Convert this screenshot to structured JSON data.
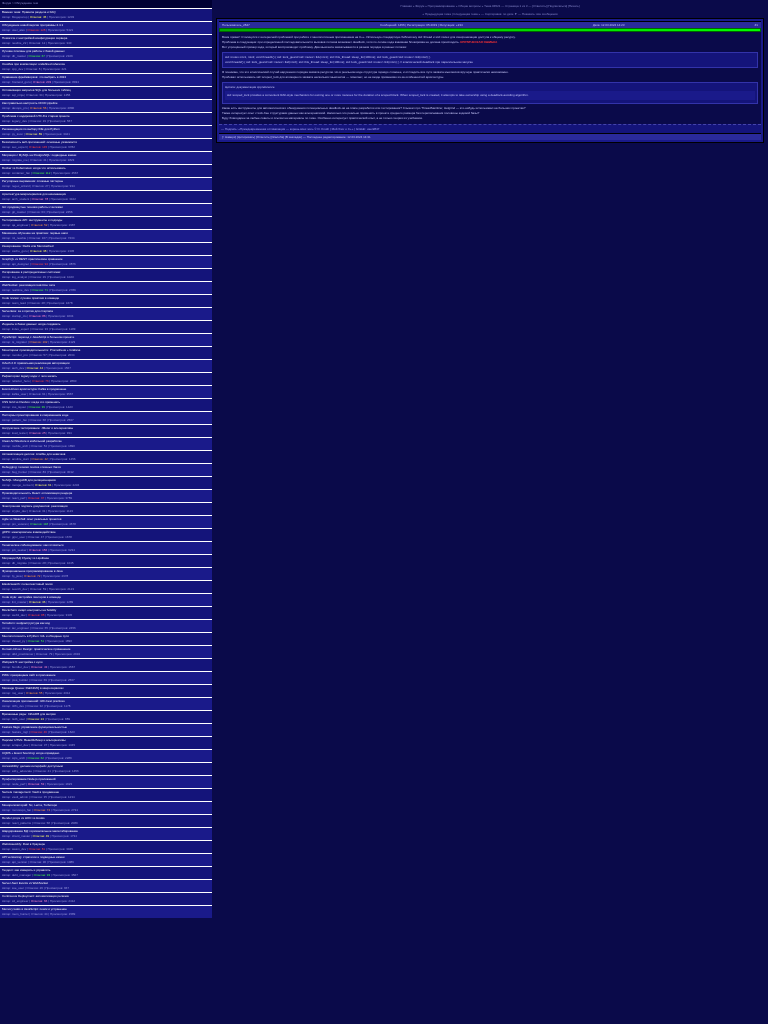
{
  "sidebar": {
    "header": "Форум > Обсуждение тем",
    "threads": [
      {
        "title": "Важная тема: Правила раздела и FAQ",
        "meta": "Автор: Модератор | Ответов: 45 | Просмотров: 1203",
        "accent": "hl-yellow"
      },
      {
        "title": "Обсуждение новой версии программы 2.4.1",
        "meta": "Автор: user_alex | Ответов: 128 | Просмотров: 5421",
        "accent": "hl-red"
      },
      {
        "title": "Помогите с настройкой конфигурации сервера",
        "meta": "Автор: newbie_22 | Ответов: 12 | Просмотров: 340",
        "accent": ""
      },
      {
        "title": "Лучшие плагины для работы с базой данных",
        "meta": "Автор: db_master | Ответов: 67 | Просмотров: 2109",
        "accent": "hl-green"
      },
      {
        "title": "Ошибка при компиляции: undefined reference",
        "meta": "Автор: cpp_dev | Ответов: 8 | Просмотров: 221",
        "accent": ""
      },
      {
        "title": "Сравнение фреймворков: что выбрать в 2024",
        "meta": "Автор: frontend_guru | Ответов: 203 | Просмотров: 8934",
        "accent": "hl-pink"
      },
      {
        "title": "Оптимизация запросов SQL для больших таблиц",
        "meta": "Автор: sql_ninja | Ответов: 34 | Просмотров: 1456",
        "accent": ""
      },
      {
        "title": "Как правильно настроить CI/CD pipeline",
        "meta": "Автор: devops_pro | Ответов: 56 | Просмотров: 2890",
        "accent": "hl-orange"
      },
      {
        "title": "Проблема с кодировкой UTF-8 в старом проекте",
        "meta": "Автор: legacy_dev | Ответов: 19 | Просмотров: 567",
        "accent": ""
      },
      {
        "title": "Рекомендации по выбору IDE для Python",
        "meta": "Автор: py_lover | Ответов: 89 | Просмотров: 3421",
        "accent": "hl-yellow"
      },
      {
        "title": "Безопасность веб-приложений: основные уязвимости",
        "meta": "Автор: sec_expert | Ответов: 145 | Просмотров: 6782",
        "accent": "hl-red"
      },
      {
        "title": "Миграция с MySQL на PostgreSQL: подводные камни",
        "meta": "Автор: migrate_me | Ответов: 41 | Просмотров: 1823",
        "accent": ""
      },
      {
        "title": "Docker vs Kubernetes: когда что использовать",
        "meta": "Автор: container_fan | Ответов: 112 | Просмотров: 4567",
        "accent": "hl-green"
      },
      {
        "title": "Регулярные выражения: сложные паттерны",
        "meta": "Автор: regex_wizard | Ответов: 27 | Просмотров: 934",
        "accent": ""
      },
      {
        "title": "Архитектура микросервисов для начинающих",
        "meta": "Автор: arch_student | Ответов: 78 | Просмотров: 3102",
        "accent": "hl-pink"
      },
      {
        "title": "Git: продвинутые техники работы с ветками",
        "meta": "Автор: git_master | Ответов: 63 | Просмотров: 2456",
        "accent": ""
      },
      {
        "title": "Тестирование API: инструменты и подходы",
        "meta": "Автор: qa_engineer | Ответов: 52 | Просмотров: 1987",
        "accent": "hl-orange"
      },
      {
        "title": "Машинное обучение на практике: первые шаги",
        "meta": "Автор: ml_newbie | Ответов: 167 | Просмотров: 7234",
        "accent": ""
      },
      {
        "title": "Кэширование: Redis или Memcached",
        "meta": "Автор: cache_guru | Ответов: 38 | Просмотров: 1345",
        "accent": "hl-yellow"
      },
      {
        "title": "GraphQL vs REST: практическое сравнение",
        "meta": "Автор: api_designer | Ответов: 94 | Просмотров: 3876",
        "accent": "hl-red"
      },
      {
        "title": "Логирование в распределённых системах",
        "meta": "Автор: log_analyst | Ответов: 29 | Просмотров: 1023",
        "accent": ""
      },
      {
        "title": "WebSocket: реализация real-time чата",
        "meta": "Автор: realtime_dev | Ответов: 71 | Просмотров: 2789",
        "accent": "hl-green"
      },
      {
        "title": "Code review: лучшие практики в команде",
        "meta": "Автор: team_lead | Ответов: 48 | Просмотров: 1678",
        "accent": ""
      },
      {
        "title": "Serverless: за и против для стартапа",
        "meta": "Автор: startup_cto | Ответов: 86 | Просмотров: 3234",
        "accent": "hl-pink"
      },
      {
        "title": "Индексы в базах данных: когда создавать",
        "meta": "Автор: index_expert | Ответов: 33 | Просмотров: 1189",
        "accent": ""
      },
      {
        "title": "TypeScript: переход с JavaScript в большом проекте",
        "meta": "Автор: ts_migrator | Ответов: 102 | Просмотров: 4123",
        "accent": "hl-orange"
      },
      {
        "title": "Мониторинг производительности: Prometheus + Grafana",
        "meta": "Автор: monitor_pro | Ответов: 57 | Просмотров: 2034",
        "accent": ""
      },
      {
        "title": "OAuth 2.0: правильная реализация авторизации",
        "meta": "Автор: auth_dev | Ответов: 44 | Просмотров: 1567",
        "accent": "hl-yellow"
      },
      {
        "title": "Рефакторинг legacy кода: с чего начать",
        "meta": "Автор: refactor_hero | Ответов: 76 | Просмотров: 2890",
        "accent": "hl-red"
      },
      {
        "title": "Event-driven архитектура: Kafka в продакшене",
        "meta": "Автор: kafka_user | Ответов: 91 | Просмотров: 3567",
        "accent": ""
      },
      {
        "title": "CSS Grid vs Flexbox: когда что применять",
        "meta": "Автор: css_layout | Ответов: 39 | Просмотров: 1423",
        "accent": "hl-green"
      },
      {
        "title": "Паттерны проектирования в современном коде",
        "meta": "Автор: pattern_fan | Ответов: 68 | Просмотров: 2567",
        "accent": ""
      },
      {
        "title": "Нагрузочное тестирование: JMeter и альтернативы",
        "meta": "Автор: load_tester | Ответов: 25 | Просмотров: 934",
        "accent": "hl-pink"
      },
      {
        "title": "Clean Architecture в мобильной разработке",
        "meta": "Автор: mobile_arch | Ответов: 54 | Просмотров: 1890",
        "accent": ""
      },
      {
        "title": "Автоматизация деплоя: Ansible для новичков",
        "meta": "Автор: ansible_start | Ответов: 42 | Просмотров: 1456",
        "accent": "hl-orange"
      },
      {
        "title": "Debugging: техники поиска сложных багов",
        "meta": "Автор: bug_hunter | Ответов: 83 | Просмотров: 3012",
        "accent": ""
      },
      {
        "title": "NoSQL: MongoDB для реляционщиков",
        "meta": "Автор: mongo_convert | Ответов: 61 | Просмотров: 2234",
        "accent": "hl-yellow"
      },
      {
        "title": "Производительность React: оптимизация рендера",
        "meta": "Автор: react_perf | Ответов: 97 | Просмотров: 3789",
        "accent": "hl-red"
      },
      {
        "title": "Электронная подпись документов: реализация",
        "meta": "Автор: crypto_dev | Ответов: 31 | Просмотров: 1123",
        "accent": ""
      },
      {
        "title": "Agile vs Waterfall: опыт реальных проектов",
        "meta": "Автор: pm_veteran | Ответов: 118 | Просмотров: 4678",
        "accent": "hl-green"
      },
      {
        "title": "gRPC: межсервисное взаимодействие",
        "meta": "Автор: grpc_user | Ответов: 47 | Просмотров: 1678",
        "accent": ""
      },
      {
        "title": "Техническое собеседование: как готовиться",
        "meta": "Автор: job_seeker | Ответов: 156 | Просмотров: 6234",
        "accent": "hl-pink"
      },
      {
        "title": "Миграции БД: Flyway vs Liquibase",
        "meta": "Автор: db_migrate | Ответов: 28 | Просмотров: 1045",
        "accent": ""
      },
      {
        "title": "Функциональное программирование в Java",
        "meta": "Автор: fp_java | Ответов: 72 | Просмотров: 2678",
        "accent": "hl-orange"
      },
      {
        "title": "Elasticsearch: полнотекстовый поиск",
        "meta": "Автор: search_dev | Ответов: 59 | Просмотров: 2123",
        "accent": ""
      },
      {
        "title": "Code style: настройка линтеров в команде",
        "meta": "Автор: lint_master | Ответов: 36 | Просмотров: 1289",
        "accent": "hl-yellow"
      },
      {
        "title": "Blockchain: смарт-контракты на Solidity",
        "meta": "Автор: web3_dev | Ответов: 88 | Просмотров: 3345",
        "accent": "hl-red"
      },
      {
        "title": "Terraform: инфраструктура как код",
        "meta": "Автор: iac_engineer | Ответов: 65 | Просмотров: 2456",
        "accent": ""
      },
      {
        "title": "Многопоточность в Python: GIL и обходные пути",
        "meta": "Автор: thread_py | Ответов: 51 | Просмотров: 1890",
        "accent": "hl-green"
      },
      {
        "title": "Domain-Driven Design: практическое применение",
        "meta": "Автор: ddd_practitioner | Ответов: 79 | Просмотров: 2934",
        "accent": ""
      },
      {
        "title": "Webpack 5: настройка с нуля",
        "meta": "Автор: bundler_dev | Ответов: 43 | Просмотров: 1567",
        "accent": "hl-pink"
      },
      {
        "title": "PWA: превращаем сайт в приложение",
        "meta": "Автор: pwa_builder | Ответов: 69 | Просмотров: 2567",
        "accent": ""
      },
      {
        "title": "Message Queue: RabbitMQ в микросервисах",
        "meta": "Автор: mq_user | Ответов: 55 | Просмотров: 2012",
        "accent": "hl-orange"
      },
      {
        "title": "Локализация приложений: i18n best practices",
        "meta": "Автор: i18n_dev | Ответов: 32 | Просмотров: 1178",
        "accent": ""
      },
      {
        "title": "Временные ряды: InfluxDB для метрик",
        "meta": "Автор: tsdb_user | Ответов: 24 | Просмотров: 889",
        "accent": "hl-yellow"
      },
      {
        "title": "Feature flags: управление функциональностью",
        "meta": "Автор: feature_mgr | Ответов: 46 | Просмотров: 1623",
        "accent": "hl-red"
      },
      {
        "title": "Парсинг HTML: BeautifulSoup и альтернативы",
        "meta": "Автор: scraper_dev | Ответов: 37 | Просмотров: 1345",
        "accent": ""
      },
      {
        "title": "CQRS + Event Sourcing: когда оправдано",
        "meta": "Автор: cqrs_arch | Ответов: 62 | Просмотров: 2289",
        "accent": "hl-green"
      },
      {
        "title": "Accessibility: делаем интерфейс доступным",
        "meta": "Автор: a11y_advocate | Ответов: 41 | Просмотров: 1456",
        "accent": ""
      },
      {
        "title": "Профилирование Node.js приложений",
        "meta": "Автор: node_perf | Ответов: 53 | Просмотров: 1923",
        "accent": "hl-pink"
      },
      {
        "title": "Secrets management: Vault в продакшене",
        "meta": "Автор: vault_admin | Ответов: 35 | Просмотров: 1234",
        "accent": ""
      },
      {
        "title": "Монорепозиторий: Nx, Lerna, Turborepo",
        "meta": "Автор: monorepo_fan | Ответов: 74 | Просмотров: 2734",
        "accent": "hl-orange"
      },
      {
        "title": "Render props vs HOC vs Hooks",
        "meta": "Автор: react_patterns | Ответов: 58 | Просмотров: 2089",
        "accent": ""
      },
      {
        "title": "Шардирование БД: горизонтальное масштабирование",
        "meta": "Автор: shard_master | Ответов: 49 | Просмотров: 1734",
        "accent": "hl-yellow"
      },
      {
        "title": "WebAssembly: Rust в браузере",
        "meta": "Автор: wasm_dev | Ответов: 81 | Просмотров: 3045",
        "accent": "hl-red"
      },
      {
        "title": "API versioning: стратегии и подводные камни",
        "meta": "Автор: api_version | Ответов: 30 | Просмотров: 1089",
        "accent": ""
      },
      {
        "title": "Техдолг: как измерять и управлять",
        "meta": "Автор: debt_manager | Ответов: 93 | Просмотров: 3567",
        "accent": "hl-green"
      },
      {
        "title": "Server-Sent Events vs WebSocket",
        "meta": "Автор: sse_user | Ответов: 26 | Просмотров: 967",
        "accent": ""
      },
      {
        "title": "Continuous Deployment: автоматизация релизов",
        "meta": "Автор: cd_engineer | Ответов: 66 | Просмотров: 2412",
        "accent": "hl-pink"
      },
      {
        "title": "Memory leaks в JavaScript: поиск и устранение",
        "meta": "Автор: mem_hunter | Ответов: 44 | Просмотров: 1589",
        "accent": ""
      }
    ]
  },
  "main": {
    "nav": "Главная » Форум » Программирование » Общие вопросы » Тема #4521 — Страница 1 из 3 — [Ответить] [Подписаться] [Печать]",
    "subnav": "« Предыдущая тема | Следующая тема » — Сортировка: по дате ▼ — Показать: все сообщения",
    "post": {
      "author": "Пользователь_2847",
      "date": "Дата: 12.03.2024 14:23",
      "num": "#1",
      "stats": "Сообщений: 1456 | Регистрация: 05.2019 | Репутация: +234",
      "line1": "Всем привет! Столкнулся с интересной проблемой при работе с многопоточным приложением на C++. Использую стандартную библиотеку std::thread и std::mutex для синхронизации доступа к общему ресурсу.",
      "line2": "Проблема в следующем: при определённой последовательности вызовов потоков возникает deadlock, хотя по логике кода взаимная блокировка не должна происходить.",
      "red": "КРИТИЧЕСКАЯ ОШИБКА",
      "line3": "Вот упрощённый пример кода, который воспроизводит проблему. Два мьютекса захватываются в разном порядке в разных потоках:",
      "code1": "std::mutex mtx1, mtx2; void thread1() { std::lock_guard<std::mutex> lk1(mtx1); std::this_thread::sleep_for(100ms); std::lock_guard<std::mutex> lk2(mtx2); }",
      "code2": "void thread2() { std::lock_guard<std::mutex> lk2(mtx2); std::this_thread::sleep_for(100ms); std::lock_guard<std::mutex> lk1(mtx1); } // классический deadlock при параллельном запуске",
      "line4": "Я понимаю, что это классический случай нарушения порядка захвата ресурсов. Но в реальном коде структура гораздо сложнее, и отследить все пути захвата мьютексов вручную практически невозможно.",
      "line5": "Пробовал использовать std::scoped_lock для атомарного захвата нескольких мьютексов — помогает, но не везде применимо из-за особенностей архитектуры.",
      "quote_header": "Цитата: документация cppreference",
      "quote_body": "std::scoped_lock provides a convenient RAII-style mechanism for owning one or more mutexes for the duration of a scoped block. When scoped_lock is created, it attempts to take ownership using a deadlock-avoiding algorithm.",
      "line6": "Какие есть инструменты для автоматического обнаружения потенциальных deadlock-ов на этапе разработки или тестирования? Слышал про ThreadSanitizer, Helgrind — кто-нибудь использовал на больших проектах?",
      "line7": "Также интересует опыт с lock-free структурами данных как альтернативой. Насколько это реально применить в проекте среднего размера без переписывания половины кодовой базы?",
      "line8": "Буду благодарен за любые советы и ссылки на материалы по теме. Особенно интересует практический опыт, а не только теория из учебников.",
      "sig": "--- Подпись: «Преждевременная оптимизация — корень всех зол» © D. Knuth | Мой блог о C++ | GitHub: user2847"
    },
    "footer_icons": "[↑ Наверх] [Цитировать] [Ответить] [Жалоба] [В закладки] — Последнее редактирование: 12.03.2024 14:31"
  }
}
